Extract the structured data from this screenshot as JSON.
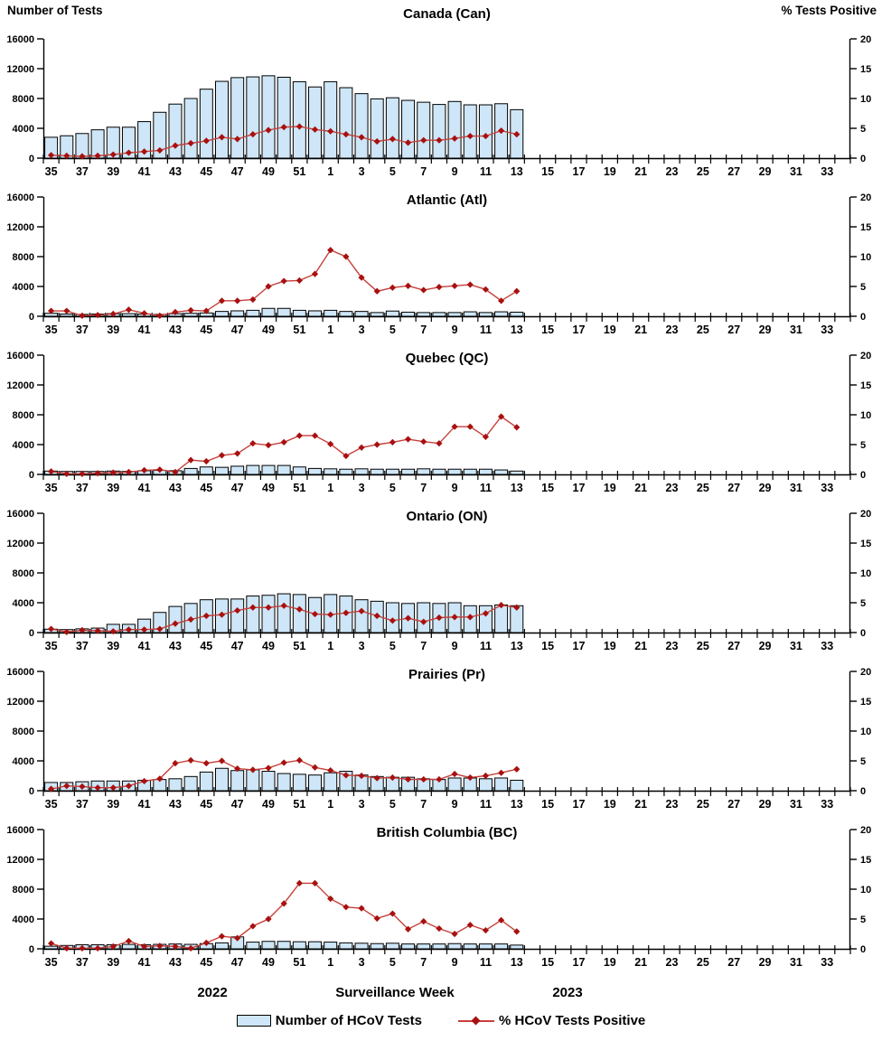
{
  "page": {
    "left_axis_title": "Number of Tests",
    "right_axis_title": "% Tests Positive",
    "x_axis": {
      "year_left": "2022",
      "axis_label": "Surveillance Week",
      "year_right": "2023"
    },
    "legend": {
      "bar_label": "Number of HCoV Tests",
      "line_label": "% HCoV Tests Positive"
    }
  },
  "colors": {
    "bar_fill": "#CEE6F7",
    "bar_border": "#000000",
    "line": "#C5403A",
    "marker": "#A8100F",
    "axis": "#000000"
  },
  "axes": {
    "left_ticks": [
      0,
      4000,
      8000,
      12000,
      16000
    ],
    "left_max": 16000,
    "right_ticks": [
      0,
      5,
      10,
      15,
      20
    ],
    "right_max": 20,
    "week_slots": [
      "35",
      "36",
      "37",
      "38",
      "39",
      "40",
      "41",
      "42",
      "43",
      "44",
      "45",
      "46",
      "47",
      "48",
      "49",
      "50",
      "51",
      "52",
      "1",
      "2",
      "3",
      "4",
      "5",
      "6",
      "7",
      "8",
      "9",
      "10",
      "11",
      "12",
      "13",
      "14",
      "15",
      "16",
      "17",
      "18",
      "19",
      "20",
      "21",
      "22",
      "23",
      "24",
      "25",
      "26",
      "27",
      "28",
      "29",
      "30",
      "31",
      "32",
      "33",
      "34"
    ]
  },
  "chart_data": [
    {
      "type": "bar",
      "title": "Canada (Can)",
      "categories": [
        "35",
        "36",
        "37",
        "38",
        "39",
        "40",
        "41",
        "42",
        "43",
        "44",
        "45",
        "46",
        "47",
        "48",
        "49",
        "50",
        "51",
        "52",
        "1",
        "2",
        "3",
        "4",
        "5",
        "6",
        "7",
        "8",
        "9",
        "10",
        "11",
        "12",
        "13"
      ],
      "xlabel": "Surveillance Week",
      "ylabel_left": "Number of Tests",
      "ylabel_right": "% Tests Positive",
      "ylim_left": [
        0,
        16000
      ],
      "ylim_right": [
        0,
        20
      ],
      "grid": false,
      "series": [
        {
          "name": "Number of HCoV Tests",
          "type": "bar",
          "axis": "left",
          "values": [
            2800,
            3000,
            3300,
            3800,
            4150,
            4150,
            4900,
            6150,
            7250,
            8000,
            9250,
            10300,
            10800,
            10900,
            11050,
            10850,
            10250,
            9550,
            10250,
            9450,
            8650,
            7950,
            8100,
            7750,
            7500,
            7200,
            7600,
            7150,
            7150,
            7300,
            6500
          ]
        },
        {
          "name": "% HCoV Tests Positive",
          "type": "line",
          "axis": "right",
          "values": [
            0.5,
            0.4,
            0.3,
            0.4,
            0.6,
            0.9,
            1.1,
            1.3,
            2.1,
            2.5,
            2.9,
            3.5,
            3.2,
            4.0,
            4.7,
            5.2,
            5.3,
            4.8,
            4.5,
            4.0,
            3.5,
            2.8,
            3.2,
            2.6,
            3.0,
            3.0,
            3.3,
            3.7,
            3.7,
            4.6,
            4.0
          ]
        }
      ]
    },
    {
      "type": "bar",
      "title": "Atlantic (Atl)",
      "categories": [
        "35",
        "36",
        "37",
        "38",
        "39",
        "40",
        "41",
        "42",
        "43",
        "44",
        "45",
        "46",
        "47",
        "48",
        "49",
        "50",
        "51",
        "52",
        "1",
        "2",
        "3",
        "4",
        "5",
        "6",
        "7",
        "8",
        "9",
        "10",
        "11",
        "12",
        "13"
      ],
      "xlabel": "Surveillance Week",
      "ylabel_left": "Number of Tests",
      "ylabel_right": "% Tests Positive",
      "ylim_left": [
        0,
        16000
      ],
      "ylim_right": [
        0,
        20
      ],
      "grid": false,
      "series": [
        {
          "name": "Number of HCoV Tests",
          "type": "bar",
          "axis": "left",
          "values": [
            400,
            300,
            250,
            300,
            350,
            350,
            300,
            250,
            350,
            400,
            450,
            650,
            730,
            800,
            1060,
            1060,
            800,
            730,
            800,
            650,
            650,
            500,
            700,
            550,
            500,
            500,
            500,
            600,
            500,
            600,
            550
          ]
        },
        {
          "name": "% HCoV Tests Positive",
          "type": "line",
          "axis": "right",
          "values": [
            0.9,
            0.9,
            0.1,
            0.2,
            0.4,
            1.1,
            0.5,
            0.1,
            0.7,
            1.0,
            0.9,
            2.6,
            2.6,
            2.8,
            5.0,
            5.9,
            6.0,
            7.1,
            11.1,
            10.0,
            6.5,
            4.2,
            4.8,
            5.1,
            4.4,
            4.9,
            5.1,
            5.3,
            4.5,
            2.6,
            4.2
          ]
        }
      ]
    },
    {
      "type": "bar",
      "title": "Quebec (QC)",
      "categories": [
        "35",
        "36",
        "37",
        "38",
        "39",
        "40",
        "41",
        "42",
        "43",
        "44",
        "45",
        "46",
        "47",
        "48",
        "49",
        "50",
        "51",
        "52",
        "1",
        "2",
        "3",
        "4",
        "5",
        "6",
        "7",
        "8",
        "9",
        "10",
        "11",
        "12",
        "13"
      ],
      "xlabel": "Surveillance Week",
      "ylabel_left": "Number of Tests",
      "ylabel_right": "% Tests Positive",
      "ylim_left": [
        0,
        16000
      ],
      "ylim_right": [
        0,
        20
      ],
      "grid": false,
      "series": [
        {
          "name": "Number of HCoV Tests",
          "type": "bar",
          "axis": "left",
          "values": [
            450,
            400,
            400,
            400,
            450,
            400,
            500,
            550,
            500,
            800,
            1000,
            950,
            1100,
            1200,
            1200,
            1200,
            1000,
            800,
            750,
            700,
            750,
            700,
            700,
            700,
            750,
            700,
            700,
            700,
            700,
            600,
            450
          ]
        },
        {
          "name": "% HCoV Tests Positive",
          "type": "line",
          "axis": "right",
          "values": [
            0.5,
            0.1,
            0.1,
            0.2,
            0.3,
            0.4,
            0.7,
            0.8,
            0.4,
            2.4,
            2.2,
            3.2,
            3.5,
            5.2,
            4.9,
            5.4,
            6.5,
            6.5,
            5.1,
            3.1,
            4.5,
            5.0,
            5.4,
            5.9,
            5.5,
            5.2,
            8.0,
            8.0,
            6.3,
            9.7,
            7.9
          ]
        }
      ]
    },
    {
      "type": "bar",
      "title": "Ontario (ON)",
      "categories": [
        "35",
        "36",
        "37",
        "38",
        "39",
        "40",
        "41",
        "42",
        "43",
        "44",
        "45",
        "46",
        "47",
        "48",
        "49",
        "50",
        "51",
        "52",
        "1",
        "2",
        "3",
        "4",
        "5",
        "6",
        "7",
        "8",
        "9",
        "10",
        "11",
        "12",
        "13"
      ],
      "xlabel": "Surveillance Week",
      "ylabel_left": "Number of Tests",
      "ylabel_right": "% Tests Positive",
      "ylim_left": [
        0,
        16000
      ],
      "ylim_right": [
        0,
        20
      ],
      "grid": false,
      "series": [
        {
          "name": "Number of HCoV Tests",
          "type": "bar",
          "axis": "left",
          "values": [
            450,
            400,
            500,
            600,
            1100,
            1100,
            1800,
            2700,
            3500,
            3900,
            4400,
            4500,
            4500,
            4900,
            5000,
            5200,
            5100,
            4700,
            5100,
            4900,
            4400,
            4200,
            4000,
            3900,
            4000,
            3900,
            4000,
            3600,
            3600,
            3700,
            3600
          ]
        },
        {
          "name": "% HCoV Tests Positive",
          "type": "line",
          "axis": "right",
          "values": [
            0.6,
            0.1,
            0.4,
            0.3,
            0.2,
            0.5,
            0.5,
            0.6,
            1.5,
            2.2,
            2.8,
            3.0,
            3.7,
            4.2,
            4.2,
            4.5,
            3.9,
            3.1,
            3.0,
            3.3,
            3.6,
            2.8,
            2.0,
            2.4,
            1.8,
            2.5,
            2.6,
            2.6,
            3.2,
            4.6,
            4.2
          ]
        }
      ]
    },
    {
      "type": "bar",
      "title": "Prairies (Pr)",
      "categories": [
        "35",
        "36",
        "37",
        "38",
        "39",
        "40",
        "41",
        "42",
        "43",
        "44",
        "45",
        "46",
        "47",
        "48",
        "49",
        "50",
        "51",
        "52",
        "1",
        "2",
        "3",
        "4",
        "5",
        "6",
        "7",
        "8",
        "9",
        "10",
        "11",
        "12",
        "13"
      ],
      "xlabel": "Surveillance Week",
      "ylabel_left": "Number of Tests",
      "ylabel_right": "% Tests Positive",
      "ylim_left": [
        0,
        16000
      ],
      "ylim_right": [
        0,
        20
      ],
      "grid": false,
      "series": [
        {
          "name": "Number of HCoV Tests",
          "type": "bar",
          "axis": "left",
          "values": [
            1100,
            1100,
            1200,
            1300,
            1300,
            1300,
            1400,
            1500,
            1600,
            1900,
            2500,
            3000,
            2700,
            2800,
            2600,
            2300,
            2200,
            2100,
            2400,
            2600,
            2100,
            1900,
            1800,
            1800,
            1600,
            1500,
            1700,
            1700,
            1600,
            1700,
            1400
          ]
        },
        {
          "name": "% HCoV Tests Positive",
          "type": "line",
          "axis": "right",
          "values": [
            0.3,
            0.8,
            0.7,
            0.5,
            0.5,
            0.8,
            1.6,
            2.0,
            4.6,
            5.1,
            4.6,
            5.0,
            3.7,
            3.5,
            3.8,
            4.7,
            5.1,
            3.9,
            3.4,
            2.6,
            2.5,
            2.1,
            2.2,
            1.9,
            1.9,
            1.9,
            2.8,
            2.2,
            2.5,
            3.0,
            3.6
          ]
        }
      ]
    },
    {
      "type": "bar",
      "title": "British Columbia (BC)",
      "categories": [
        "35",
        "36",
        "37",
        "38",
        "39",
        "40",
        "41",
        "42",
        "43",
        "44",
        "45",
        "46",
        "47",
        "48",
        "49",
        "50",
        "51",
        "52",
        "1",
        "2",
        "3",
        "4",
        "5",
        "6",
        "7",
        "8",
        "9",
        "10",
        "11",
        "12",
        "13"
      ],
      "xlabel": "Surveillance Week",
      "ylabel_left": "Number of Tests",
      "ylabel_right": "% Tests Positive",
      "ylim_left": [
        0,
        16000
      ],
      "ylim_right": [
        0,
        20
      ],
      "grid": false,
      "series": [
        {
          "name": "Number of HCoV Tests",
          "type": "bar",
          "axis": "left",
          "values": [
            350,
            450,
            550,
            550,
            550,
            600,
            550,
            600,
            650,
            600,
            700,
            800,
            1600,
            900,
            1000,
            1000,
            950,
            950,
            900,
            800,
            750,
            700,
            750,
            650,
            650,
            650,
            700,
            650,
            650,
            650,
            500
          ]
        },
        {
          "name": "% HCoV Tests Positive",
          "type": "line",
          "axis": "right",
          "values": [
            0.9,
            0.1,
            0.1,
            0.1,
            0.4,
            1.3,
            0.4,
            0.5,
            0.4,
            0.1,
            1.0,
            2.1,
            1.8,
            3.8,
            5.0,
            7.6,
            11.0,
            11.0,
            8.4,
            7.0,
            6.8,
            5.1,
            5.9,
            3.3,
            4.6,
            3.4,
            2.5,
            4.0,
            3.1,
            4.8,
            2.9
          ]
        }
      ]
    }
  ]
}
